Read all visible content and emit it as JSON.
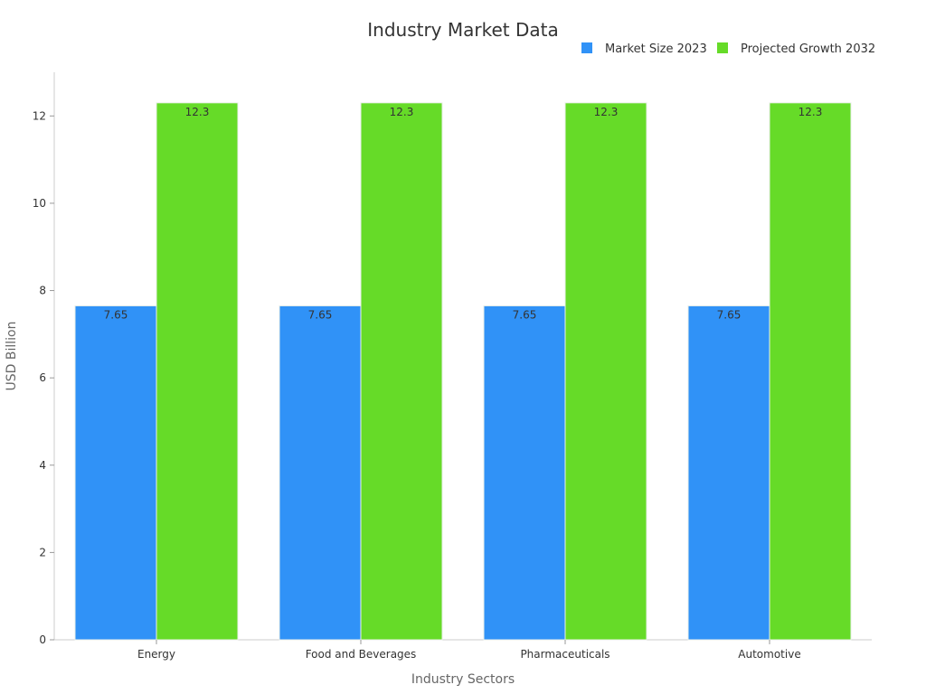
{
  "chart_data": {
    "type": "bar",
    "title": "Industry Market Data",
    "xlabel": "Industry Sectors",
    "ylabel": "USD Billion",
    "categories": [
      "Energy",
      "Food and Beverages",
      "Pharmaceuticals",
      "Automotive"
    ],
    "series": [
      {
        "name": "Market Size 2023",
        "values": [
          7.65,
          7.65,
          7.65,
          7.65
        ],
        "color": "#3092f7"
      },
      {
        "name": "Projected Growth 2032",
        "values": [
          12.3,
          12.3,
          12.3,
          12.3
        ],
        "color": "#66db28"
      }
    ],
    "ylim": [
      0,
      13
    ],
    "yticks": [
      0,
      2,
      4,
      6,
      8,
      10,
      12
    ],
    "grid": false,
    "legend": "top-right",
    "data_labels": true
  }
}
